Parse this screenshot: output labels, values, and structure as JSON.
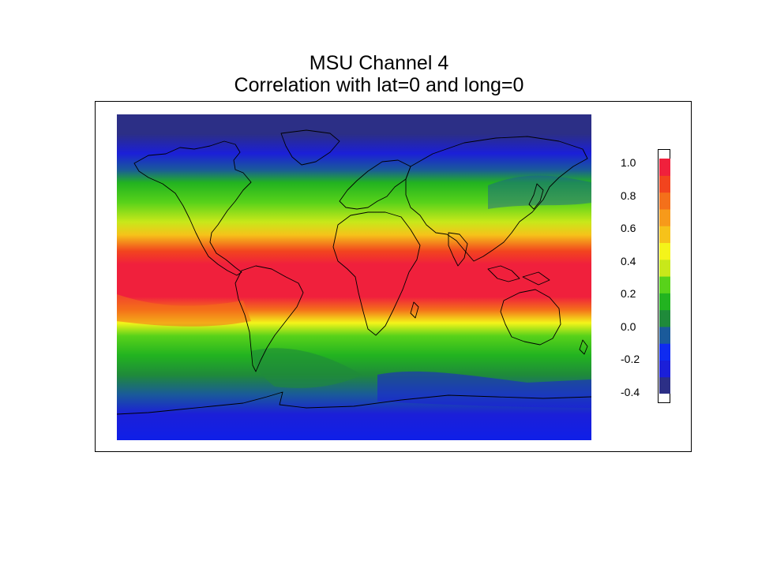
{
  "title_line1": "MSU Channel 4",
  "title_line2": "Correlation with lat=0 and long=0",
  "map": {
    "projection": "equirectangular world map",
    "lon_range": [
      -180,
      180
    ],
    "lat_range": [
      -90,
      90
    ],
    "field_description": "correlation peaks (~1.0) in a tropical band between about 20S and 20N, ~0.4 in midlatitudes, ~0.0 to -0.3 near the poles"
  },
  "colorbar": {
    "ticks": [
      "1.0",
      "0.8",
      "0.6",
      "0.4",
      "0.2",
      "0.0",
      "-0.2",
      "-0.4"
    ],
    "min": -0.4,
    "max": 1.0,
    "colors": [
      "#2c2f86",
      "#1b1fd8",
      "#0f2bf0",
      "#1a5a9a",
      "#1f8a3a",
      "#22b320",
      "#58d21a",
      "#c8e81a",
      "#f4f41a",
      "#f6c21a",
      "#f79a1a",
      "#f4701a",
      "#f2441e",
      "#f0203c"
    ]
  }
}
